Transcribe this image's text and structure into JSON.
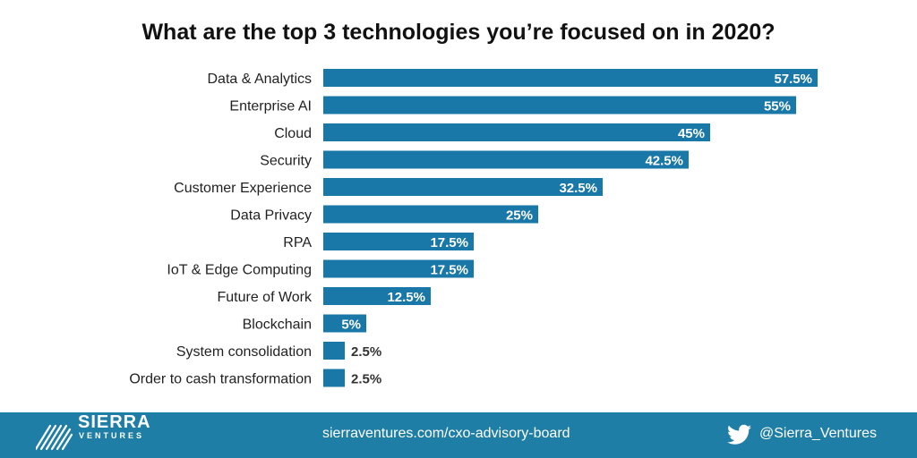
{
  "chart_data": {
    "type": "bar",
    "orientation": "horizontal",
    "title": "What are the top 3 technologies you’re focused on in 2020?",
    "categories": [
      "Data & Analytics",
      "Enterprise AI",
      "Cloud",
      "Security",
      "Customer Experience",
      "Data Privacy",
      "RPA",
      "IoT & Edge Computing",
      "Future of Work",
      "Blockchain",
      "System consolidation",
      "Order to cash transformation"
    ],
    "values": [
      57.5,
      55,
      45,
      42.5,
      32.5,
      25,
      17.5,
      17.5,
      12.5,
      5,
      2.5,
      2.5
    ],
    "data_labels": [
      "57.5%",
      "55%",
      "45%",
      "42.5%",
      "32.5%",
      "25%",
      "17.5%",
      "17.5%",
      "12.5%",
      "5%",
      "2.5%",
      "2.5%"
    ],
    "xlim": [
      0,
      57.5
    ],
    "grid": false,
    "bar_color": "#1a78a8"
  },
  "footer": {
    "brand_name": "SIERRA",
    "brand_sub": "VENTURES",
    "url": "sierraventures.com/cxo-advisory-board",
    "twitter_handle": "@Sierra_Ventures",
    "bg_color": "#1f7ea6"
  }
}
